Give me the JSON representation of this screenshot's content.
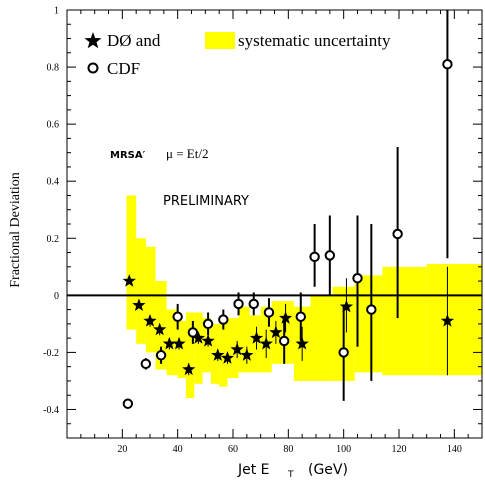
{
  "chart_data": {
    "type": "scatter",
    "xlabel": "Jet E",
    "xlabel_sub": "T",
    "xlabel_unit": "(GeV)",
    "ylabel": "Fractional Deviation",
    "xlim": [
      0,
      150
    ],
    "ylim": [
      -0.5,
      1.0
    ],
    "x_ticks": [
      20,
      40,
      60,
      80,
      100,
      120,
      140
    ],
    "y_ticks": [
      -0.4,
      -0.2,
      0,
      0.2,
      0.4,
      0.6,
      0.8,
      1
    ],
    "y_tick_labels": [
      "-0.4",
      "-0.2",
      "0",
      "0.2",
      "0.4",
      "0.6",
      "0.8",
      "1"
    ],
    "legend": {
      "d0_label": "DØ  and",
      "band_label": "systematic uncertainty",
      "cdf_label": "CDF"
    },
    "annotations": {
      "pdf": "MRSA′",
      "scale": "μ = Et/2",
      "preliminary": "PRELIMINARY"
    },
    "zero_line": 0,
    "band": {
      "name": "systematic uncertainty",
      "color": "#ffff00",
      "steps": [
        {
          "x0": 21.5,
          "x1": 25,
          "lo": -0.12,
          "hi": 0.35
        },
        {
          "x0": 25,
          "x1": 28.5,
          "lo": -0.17,
          "hi": 0.2
        },
        {
          "x0": 28.5,
          "x1": 32,
          "lo": -0.2,
          "hi": 0.17
        },
        {
          "x0": 32,
          "x1": 36,
          "lo": -0.26,
          "hi": 0.05
        },
        {
          "x0": 36,
          "x1": 40,
          "lo": -0.28,
          "hi": -0.05
        },
        {
          "x0": 40,
          "x1": 43,
          "lo": -0.29,
          "hi": -0.09
        },
        {
          "x0": 43,
          "x1": 46,
          "lo": -0.36,
          "hi": -0.06
        },
        {
          "x0": 46,
          "x1": 49,
          "lo": -0.31,
          "hi": -0.06
        },
        {
          "x0": 49,
          "x1": 52,
          "lo": -0.27,
          "hi": -0.08
        },
        {
          "x0": 52,
          "x1": 55,
          "lo": -0.31,
          "hi": -0.1
        },
        {
          "x0": 55,
          "x1": 58,
          "lo": -0.32,
          "hi": -0.09
        },
        {
          "x0": 58,
          "x1": 62,
          "lo": -0.29,
          "hi": -0.08
        },
        {
          "x0": 62,
          "x1": 66,
          "lo": -0.27,
          "hi": -0.04
        },
        {
          "x0": 66,
          "x1": 70,
          "lo": -0.27,
          "hi": -0.07
        },
        {
          "x0": 70,
          "x1": 74,
          "lo": -0.27,
          "hi": -0.04
        },
        {
          "x0": 74,
          "x1": 78,
          "lo": -0.24,
          "hi": -0.02
        },
        {
          "x0": 78,
          "x1": 82,
          "lo": -0.24,
          "hi": -0.02
        },
        {
          "x0": 82,
          "x1": 88,
          "lo": -0.3,
          "hi": -0.04
        },
        {
          "x0": 88,
          "x1": 96,
          "lo": -0.3,
          "hi": 0.0
        },
        {
          "x0": 96,
          "x1": 104,
          "lo": -0.3,
          "hi": 0.03
        },
        {
          "x0": 104,
          "x1": 114,
          "lo": -0.27,
          "hi": 0.07
        },
        {
          "x0": 114,
          "x1": 130,
          "lo": -0.28,
          "hi": 0.1
        },
        {
          "x0": 130,
          "x1": 150,
          "lo": -0.28,
          "hi": 0.11
        }
      ]
    },
    "series": [
      {
        "name": "DØ",
        "marker": "star",
        "points": [
          {
            "x": 22.5,
            "y": 0.05,
            "lo": 0.05,
            "hi": 0.05
          },
          {
            "x": 26,
            "y": -0.035,
            "lo": -0.035,
            "hi": -0.035
          },
          {
            "x": 30,
            "y": -0.09,
            "lo": -0.11,
            "hi": -0.07
          },
          {
            "x": 33.5,
            "y": -0.12,
            "lo": -0.14,
            "hi": -0.1
          },
          {
            "x": 37,
            "y": -0.17,
            "lo": -0.19,
            "hi": -0.15
          },
          {
            "x": 40.5,
            "y": -0.17,
            "lo": -0.19,
            "hi": -0.15
          },
          {
            "x": 44,
            "y": -0.26,
            "lo": -0.28,
            "hi": -0.24
          },
          {
            "x": 47.5,
            "y": -0.15,
            "lo": -0.17,
            "hi": -0.13
          },
          {
            "x": 51,
            "y": -0.16,
            "lo": -0.18,
            "hi": -0.14
          },
          {
            "x": 54.5,
            "y": -0.21,
            "lo": -0.23,
            "hi": -0.19
          },
          {
            "x": 58,
            "y": -0.22,
            "lo": -0.24,
            "hi": -0.2
          },
          {
            "x": 61.5,
            "y": -0.19,
            "lo": -0.22,
            "hi": -0.16
          },
          {
            "x": 65,
            "y": -0.21,
            "lo": -0.24,
            "hi": -0.18
          },
          {
            "x": 68.5,
            "y": -0.15,
            "lo": -0.19,
            "hi": -0.11
          },
          {
            "x": 72,
            "y": -0.17,
            "lo": -0.22,
            "hi": -0.12
          },
          {
            "x": 75.5,
            "y": -0.13,
            "lo": -0.17,
            "hi": -0.09
          },
          {
            "x": 79,
            "y": -0.08,
            "lo": -0.13,
            "hi": -0.03
          },
          {
            "x": 85,
            "y": -0.17,
            "lo": -0.23,
            "hi": -0.11
          },
          {
            "x": 101,
            "y": -0.04,
            "lo": -0.13,
            "hi": 0.06
          },
          {
            "x": 137.5,
            "y": -0.09,
            "lo": -0.28,
            "hi": 0.1
          }
        ]
      },
      {
        "name": "CDF",
        "marker": "circle",
        "points": [
          {
            "x": 22,
            "y": -0.38,
            "lo": -0.38,
            "hi": -0.38
          },
          {
            "x": 28.5,
            "y": -0.24,
            "lo": -0.26,
            "hi": -0.22
          },
          {
            "x": 34,
            "y": -0.21,
            "lo": -0.24,
            "hi": -0.18
          },
          {
            "x": 40,
            "y": -0.075,
            "lo": -0.12,
            "hi": -0.03
          },
          {
            "x": 45.5,
            "y": -0.13,
            "lo": -0.17,
            "hi": -0.09
          },
          {
            "x": 51,
            "y": -0.1,
            "lo": -0.14,
            "hi": -0.06
          },
          {
            "x": 56.5,
            "y": -0.085,
            "lo": -0.12,
            "hi": -0.05
          },
          {
            "x": 62,
            "y": -0.03,
            "lo": -0.07,
            "hi": 0.01
          },
          {
            "x": 67.5,
            "y": -0.03,
            "lo": -0.07,
            "hi": 0.01
          },
          {
            "x": 73,
            "y": -0.06,
            "lo": -0.11,
            "hi": -0.01
          },
          {
            "x": 78.5,
            "y": -0.16,
            "lo": -0.24,
            "hi": -0.08
          },
          {
            "x": 84.5,
            "y": -0.075,
            "lo": -0.16,
            "hi": 0.01
          },
          {
            "x": 89.5,
            "y": 0.135,
            "lo": 0.03,
            "hi": 0.25
          },
          {
            "x": 95,
            "y": 0.14,
            "lo": 0.0,
            "hi": 0.28
          },
          {
            "x": 100,
            "y": -0.2,
            "lo": -0.37,
            "hi": -0.04
          },
          {
            "x": 105,
            "y": 0.06,
            "lo": -0.18,
            "hi": 0.28
          },
          {
            "x": 110,
            "y": -0.05,
            "lo": -0.3,
            "hi": 0.25
          },
          {
            "x": 119.5,
            "y": 0.215,
            "lo": -0.08,
            "hi": 0.52
          },
          {
            "x": 137.5,
            "y": 0.81,
            "lo": 0.13,
            "hi": 1.0
          }
        ]
      }
    ]
  }
}
